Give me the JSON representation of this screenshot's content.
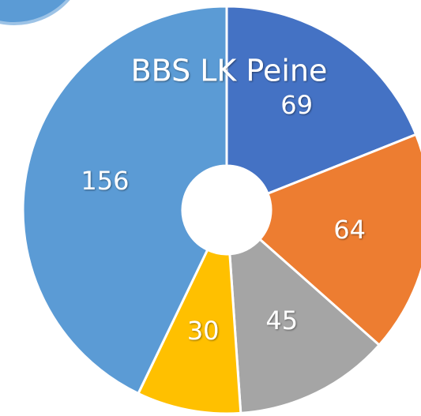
{
  "chart_data": {
    "type": "donut",
    "title": "BBS LK Peine",
    "categories": [
      null,
      null,
      null,
      null,
      null
    ],
    "values": [
      69,
      64,
      45,
      30,
      156
    ],
    "colors": [
      "#4472c4",
      "#ed7d31",
      "#a5a5a5",
      "#ffc000",
      "#5b9bd5"
    ]
  }
}
